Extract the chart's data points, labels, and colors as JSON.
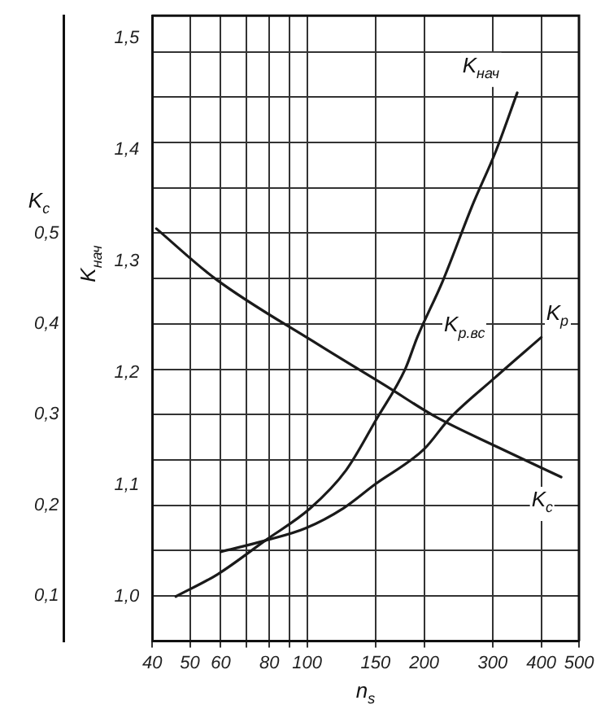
{
  "chart_data": {
    "type": "line",
    "xlabel": "n$_{s}$",
    "ylabel": "K$_{нач}$",
    "y2label": "K$_{c}$",
    "log": "x",
    "grid": true,
    "legend": false,
    "marker": "none",
    "line_style": "solid",
    "xlim": [
      40,
      500
    ],
    "xticks": [
      40,
      50,
      60,
      {
        "value": 70,
        "label": null
      },
      80,
      {
        "value": 90,
        "label": null
      },
      100,
      150,
      200,
      300,
      400,
      500
    ],
    "ylim": [
      0.96,
      1.52
    ],
    "yticks": [
      {
        "value": 1.0,
        "label": "1,0"
      },
      {
        "value": 1.1,
        "label": "1,1"
      },
      {
        "value": 1.2,
        "label": "1,2"
      },
      {
        "value": 1.3,
        "label": "1,3"
      },
      {
        "value": 1.4,
        "label": "1,4"
      },
      {
        "value": 1.5,
        "label": "1,5"
      }
    ],
    "y2lim": [
      0.05,
      0.74
    ],
    "y2ticks": [
      {
        "value": 0.1,
        "label": "0,1"
      },
      {
        "value": 0.15,
        "label": null
      },
      {
        "value": 0.2,
        "label": "0,2"
      },
      {
        "value": 0.25,
        "label": null
      },
      {
        "value": 0.3,
        "label": "0,3"
      },
      {
        "value": 0.35,
        "label": null
      },
      {
        "value": 0.4,
        "label": "0,4"
      },
      {
        "value": 0.45,
        "label": null
      },
      {
        "value": 0.5,
        "label": "0,5"
      },
      {
        "value": 0.55,
        "label": null
      },
      {
        "value": 0.6,
        "label": null
      },
      {
        "value": 0.65,
        "label": null
      },
      {
        "value": 0.7,
        "label": null
      }
    ],
    "series": [
      {
        "name": "K$_{c}$",
        "type": "line",
        "axis": "y2",
        "color": "#1a1a1a",
        "x": [
          41,
          58,
          107,
          163,
          213,
          309,
          450
        ],
        "values": [
          0.505,
          0.45,
          0.377,
          0.329,
          0.298,
          0.264,
          0.231
        ]
      },
      {
        "name": "K$_{нач}$",
        "type": "line",
        "color": "#1a1a1a",
        "x": [
          46,
          59,
          78,
          102,
          126,
          151,
          179,
          192,
          223,
          266,
          306,
          347
        ],
        "values": [
          1.0,
          1.02,
          1.05,
          1.079,
          1.113,
          1.159,
          1.204,
          1.232,
          1.282,
          1.35,
          1.399,
          1.451
        ]
      },
      {
        "name": "K$_{р}$",
        "type": "line",
        "color": "#1a1a1a",
        "x": [
          60,
          78,
          99,
          124,
          149,
          200,
          232,
          302,
          400
        ],
        "values": [
          1.04,
          1.05,
          1.061,
          1.079,
          1.1,
          1.132,
          1.159,
          1.195,
          1.232
        ]
      }
    ],
    "annotations": [
      "K$_{р.вс}$"
    ]
  }
}
